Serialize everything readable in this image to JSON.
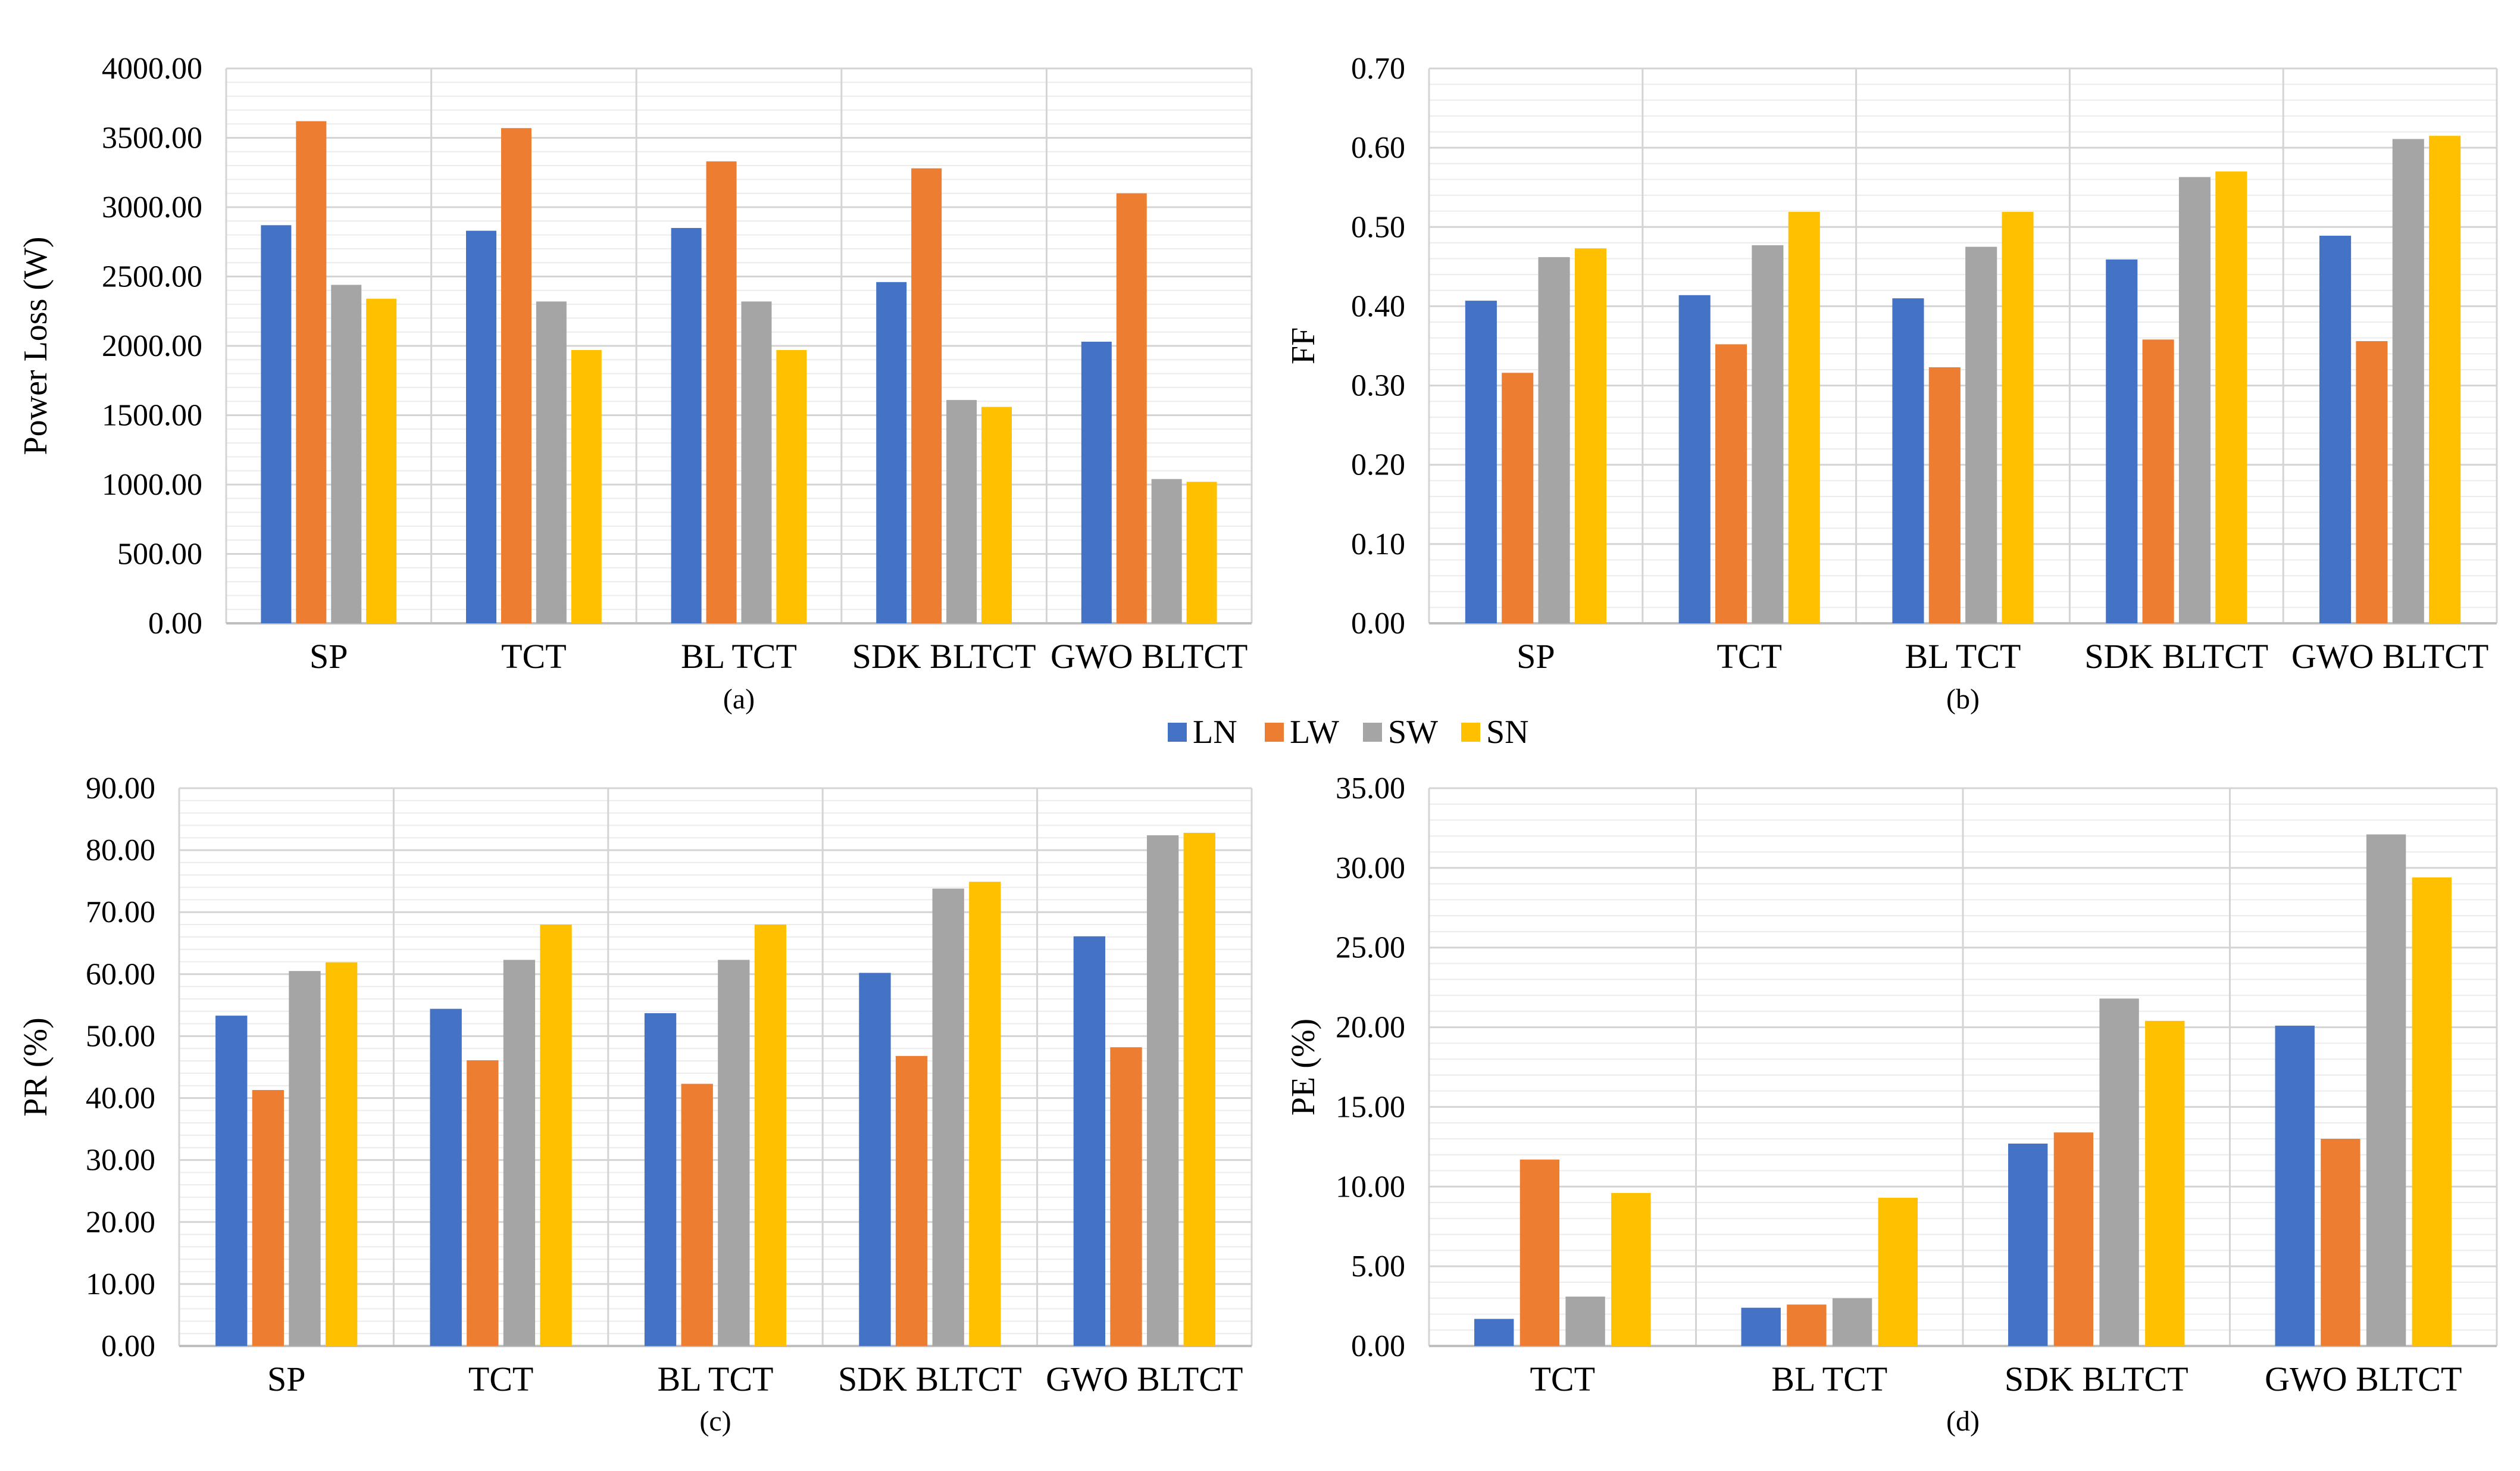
{
  "legend": {
    "position": "top-center",
    "series": [
      {
        "name": "LN",
        "color": "#4472C4"
      },
      {
        "name": "LW",
        "color": "#ED7D31"
      },
      {
        "name": "SW",
        "color": "#A5A5A5"
      },
      {
        "name": "SN",
        "color": "#FFC000"
      }
    ]
  },
  "chart_data": [
    {
      "id": "a",
      "type": "bar",
      "caption": "(a)",
      "ylabel": "Power Loss (W)",
      "xlabel": "",
      "ylim": [
        0,
        4000
      ],
      "yticks": [
        "0.00",
        "500.00",
        "1000.00",
        "1500.00",
        "2000.00",
        "2500.00",
        "3000.00",
        "3500.00",
        "4000.00"
      ],
      "minor_grid": true,
      "categories": [
        "SP",
        "TCT",
        "BL TCT",
        "SDK BLTCT",
        "GWO BLTCT"
      ],
      "series": [
        {
          "name": "LN",
          "values": [
            2870,
            2830,
            2850,
            2460,
            2030
          ]
        },
        {
          "name": "LW",
          "values": [
            3620,
            3570,
            3330,
            3280,
            3100
          ]
        },
        {
          "name": "SW",
          "values": [
            2440,
            2320,
            2320,
            1610,
            1040
          ]
        },
        {
          "name": "SN",
          "values": [
            2340,
            1970,
            1970,
            1560,
            1020
          ]
        }
      ]
    },
    {
      "id": "b",
      "type": "bar",
      "caption": "(b)",
      "ylabel": "FF",
      "xlabel": "",
      "ylim": [
        0,
        0.7
      ],
      "yticks": [
        "0.00",
        "0.10",
        "0.20",
        "0.30",
        "0.40",
        "0.50",
        "0.60",
        "0.70"
      ],
      "minor_grid": true,
      "categories": [
        "SP",
        "TCT",
        "BL TCT",
        "SDK BLTCT",
        "GWO BLTCT"
      ],
      "series": [
        {
          "name": "LN",
          "values": [
            0.407,
            0.414,
            0.41,
            0.459,
            0.489
          ]
        },
        {
          "name": "LW",
          "values": [
            0.316,
            0.352,
            0.323,
            0.358,
            0.356
          ]
        },
        {
          "name": "SW",
          "values": [
            0.462,
            0.477,
            0.475,
            0.563,
            0.611
          ]
        },
        {
          "name": "SN",
          "values": [
            0.473,
            0.519,
            0.519,
            0.57,
            0.615
          ]
        }
      ]
    },
    {
      "id": "c",
      "type": "bar",
      "caption": "(c)",
      "ylabel": "PR (%)",
      "xlabel": "",
      "ylim": [
        0,
        90
      ],
      "yticks": [
        "0.00",
        "10.00",
        "20.00",
        "30.00",
        "40.00",
        "50.00",
        "60.00",
        "70.00",
        "80.00",
        "90.00"
      ],
      "minor_grid": true,
      "categories": [
        "SP",
        "TCT",
        "BL TCT",
        "SDK BLTCT",
        "GWO BLTCT"
      ],
      "series": [
        {
          "name": "LN",
          "values": [
            53.3,
            54.4,
            53.7,
            60.2,
            66.1
          ]
        },
        {
          "name": "LW",
          "values": [
            41.3,
            46.1,
            42.3,
            46.8,
            48.2
          ]
        },
        {
          "name": "SW",
          "values": [
            60.5,
            62.3,
            62.3,
            73.8,
            82.4
          ]
        },
        {
          "name": "SN",
          "values": [
            61.9,
            68.0,
            68.0,
            74.9,
            82.8
          ]
        }
      ]
    },
    {
      "id": "d",
      "type": "bar",
      "caption": "(d)",
      "ylabel": "PE (%)",
      "xlabel": "",
      "ylim": [
        0,
        35
      ],
      "yticks": [
        "0.00",
        "5.00",
        "10.00",
        "15.00",
        "20.00",
        "25.00",
        "30.00",
        "35.00"
      ],
      "minor_grid": true,
      "categories": [
        "TCT",
        "BL TCT",
        "SDK BLTCT",
        "GWO BLTCT"
      ],
      "series": [
        {
          "name": "LN",
          "values": [
            1.7,
            2.4,
            12.7,
            20.1
          ]
        },
        {
          "name": "LW",
          "values": [
            11.7,
            2.6,
            13.4,
            13.0
          ]
        },
        {
          "name": "SW",
          "values": [
            3.1,
            3.0,
            21.8,
            32.1
          ]
        },
        {
          "name": "SN",
          "values": [
            9.6,
            9.3,
            20.4,
            29.4
          ]
        }
      ]
    }
  ]
}
